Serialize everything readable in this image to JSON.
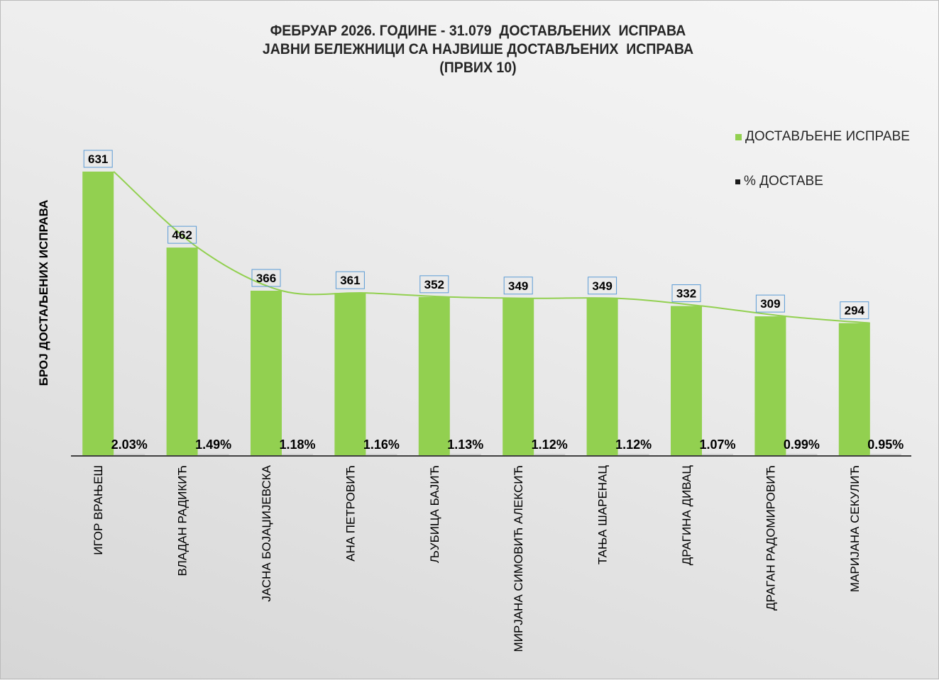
{
  "chart_data": {
    "type": "bar",
    "title_lines": [
      "ФЕБРУАР 2026. ГОДИНЕ - 31.079  ДОСТАВЉЕНИХ  ИСПРАВА",
      "ЈАВНИ БЕЛЕЖНИЦИ СА НАЈВИШЕ ДОСТАВЉЕНИХ  ИСПРАВА",
      "(ПРВИХ 10)"
    ],
    "ylabel": "БРОЈ ДОСТАЉЕНИХ ИСПРАВА",
    "xlabel": "",
    "categories": [
      "ИГОР ВРАЊЕШ",
      "ВЛАДАН РАДИКИЋ",
      "ЈАСНА БОЈАЏИЈЕВСКА",
      "АНА ПЕТРОВИЋ",
      "ЉУБИЦА БАЈИЋ",
      "МИРЈАНА СИМОВИЋ АЛЕКСИЋ",
      "ТАЊА ШАРЕНАЦ",
      "ДРАГИНА ДИВАЦ",
      "ДРАГАН РАДОМИРОВИЋ",
      "МАРИЈАНА СЕКУЛИЋ"
    ],
    "series": [
      {
        "name": "ДОСТАВЉЕНЕ  ИСПРАВЕ",
        "values": [
          631,
          462,
          366,
          361,
          352,
          349,
          349,
          332,
          309,
          294
        ],
        "color": "#92d050"
      },
      {
        "name": "% ДОСТАВЕ",
        "values": [
          2.03,
          1.49,
          1.18,
          1.16,
          1.13,
          1.12,
          1.12,
          1.07,
          0.99,
          0.95
        ],
        "labels": [
          "2.03%",
          "1.49%",
          "1.18%",
          "1.16%",
          "1.13%",
          "1.12%",
          "1.12%",
          "1.07%",
          "0.99%",
          "0.95%"
        ],
        "color": "#1a1a1a"
      }
    ],
    "trendline": {
      "series": "ДОСТАВЉЕНЕ  ИСПРАВЕ",
      "type": "smoothed",
      "color": "#92d050"
    },
    "ylim": [
      0,
      631
    ],
    "grid": false,
    "legend": "top-right"
  }
}
